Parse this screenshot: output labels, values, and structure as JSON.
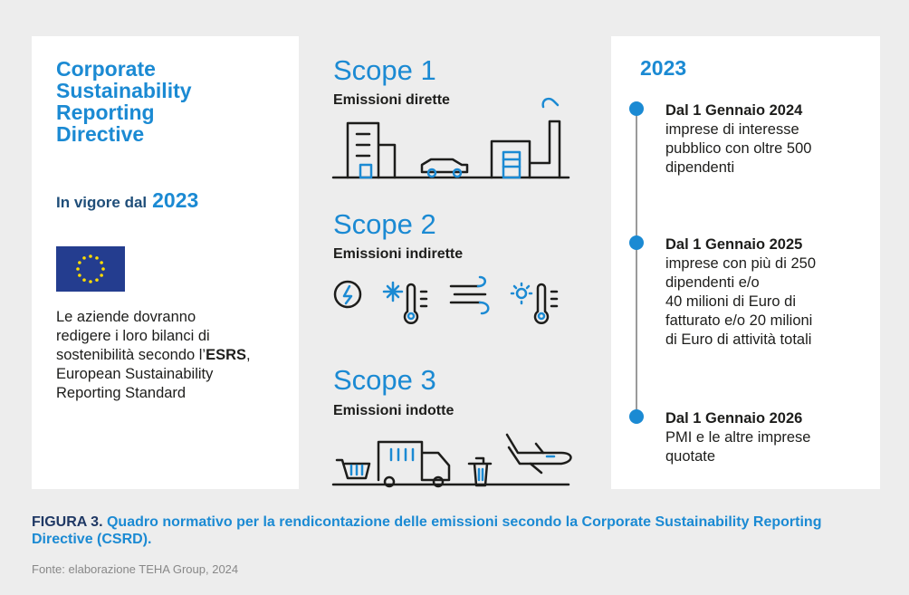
{
  "left": {
    "title": "Corporate Sustainability Reporting Directive",
    "in_force_label": "In vigore dal",
    "in_force_year": "2023",
    "paragraph": [
      "Le aziende dovranno redigere i loro bilanci di sostenibilità secondo l’",
      "ESRS",
      ", European Sustainability Reporting Standard"
    ]
  },
  "scopes": [
    {
      "title": "Scope 1",
      "subtitle": "Emissioni dirette"
    },
    {
      "title": "Scope 2",
      "subtitle": "Emissioni indirette"
    },
    {
      "title": "Scope 3",
      "subtitle": "Emissioni indotte"
    }
  ],
  "timeline": {
    "year": "2023",
    "items": [
      {
        "date": "Dal 1 Gennaio 2024",
        "lines": [
          "imprese di interesse",
          "pubblico con oltre 500",
          "dipendenti"
        ]
      },
      {
        "date": "Dal 1 Gennaio 2025",
        "lines": [
          "imprese con più di 250",
          "dipendenti e/o",
          "40 milioni di Euro di",
          "fatturato e/o 20 milioni",
          "di Euro di attività totali"
        ]
      },
      {
        "date": "Dal 1 Gennaio 2026",
        "lines": [
          "PMI e le altre imprese",
          "quotate"
        ]
      }
    ]
  },
  "caption": {
    "label": "FIGURA 3.",
    "text": "Quadro normativo per la rendicontazione delle emissioni secondo la Corporate Sustainability Reporting Directive (CSRD)."
  },
  "source": "Fonte: elaborazione TEHA Group, 2024"
}
